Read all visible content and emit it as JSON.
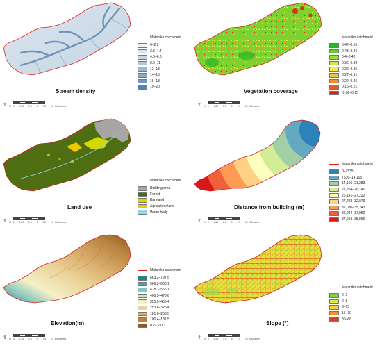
{
  "catchment_label": "Mataniko catchment",
  "scale": {
    "north": "N",
    "labels": [
      "0",
      "1.25",
      "2.5",
      "5",
      "7.5",
      "10"
    ],
    "unit": "Kilometers"
  },
  "panels": [
    {
      "id": "stream",
      "title": "Stream density",
      "legend": [
        {
          "label": "0–2.2",
          "color": "#eef3f7"
        },
        {
          "label": "2.3–4.4",
          "color": "#d9e4ee"
        },
        {
          "label": "4.5–6.6",
          "color": "#c6d6e4"
        },
        {
          "label": "8.9–11",
          "color": "#b1c7da"
        },
        {
          "label": "12–13",
          "color": "#9db8d0"
        },
        {
          "label": "14–15",
          "color": "#88a8c5"
        },
        {
          "label": "16–18",
          "color": "#7398bb"
        },
        {
          "label": "19–20",
          "color": "#5883ad"
        }
      ]
    },
    {
      "id": "vegetation",
      "title": "Vegetation coverage",
      "legend": [
        {
          "label": "0.47–0.55",
          "color": "#1fbf1f"
        },
        {
          "label": "0.43–0.46",
          "color": "#5fd12a"
        },
        {
          "label": "0.4–0.42",
          "color": "#9ae03a"
        },
        {
          "label": "0.36–0.39",
          "color": "#cfe84a"
        },
        {
          "label": "0.32–0.35",
          "color": "#f2ea52"
        },
        {
          "label": "0.27–0.31",
          "color": "#f6c23a"
        },
        {
          "label": "0.22–0.26",
          "color": "#f3902c"
        },
        {
          "label": "0.16–0.21",
          "color": "#ea5a22"
        },
        {
          "label": "-0.02–0.15",
          "color": "#dd1b1b"
        }
      ]
    },
    {
      "id": "landuse",
      "title": "Land use",
      "legend": [
        {
          "label": "Building area",
          "color": "#a6a6a6"
        },
        {
          "label": "Forest",
          "color": "#4f6e12"
        },
        {
          "label": "Bareland",
          "color": "#d3d900"
        },
        {
          "label": "Agriculture land",
          "color": "#f0c800"
        },
        {
          "label": "Water body",
          "color": "#8fd6f5"
        }
      ]
    },
    {
      "id": "distance",
      "title": "Distance from building (m)",
      "legend": [
        {
          "label": "0–7535",
          "color": "#2b83ba"
        },
        {
          "label": "7536–14,105",
          "color": "#64a8c1"
        },
        {
          "label": "14,106–21,283",
          "color": "#a1cfa6"
        },
        {
          "label": "21,284–26,140",
          "color": "#d3ec98"
        },
        {
          "label": "26,141–27,222",
          "color": "#fefebe"
        },
        {
          "label": "27,223–32,079",
          "color": "#fed185"
        },
        {
          "label": "32,080–35,243",
          "color": "#fd9b55"
        },
        {
          "label": "35,244–37,952",
          "color": "#f0603a"
        },
        {
          "label": "37,953–38,866",
          "color": "#d7191c"
        }
      ]
    },
    {
      "id": "elevation",
      "title": "Elevation(m)",
      "legend": [
        {
          "label": "663.2–797.5",
          "color": "#2b7f86"
        },
        {
          "label": "566.2–663.1",
          "color": "#53a3a3"
        },
        {
          "label": "478.7–566.1",
          "color": "#88c6bd"
        },
        {
          "label": "400.5–478.6",
          "color": "#c2e3d2"
        },
        {
          "label": "325.5–400.4",
          "color": "#f3f0c8"
        },
        {
          "label": "253.6–325.4",
          "color": "#ecd49a"
        },
        {
          "label": "181.6–253.5",
          "color": "#d9ad6b"
        },
        {
          "label": "100.4–181.5",
          "color": "#b9843f"
        },
        {
          "label": "0.2–100.3",
          "color": "#8c5a22"
        }
      ]
    },
    {
      "id": "slope",
      "title": "Slope (°)",
      "legend": [
        {
          "label": "0–2",
          "color": "#7fd14a"
        },
        {
          "label": "2–8",
          "color": "#d6e84a"
        },
        {
          "label": "8–15",
          "color": "#f6d23a"
        },
        {
          "label": "15–30",
          "color": "#f1922e"
        },
        {
          "label": "30–66",
          "color": "#d9421e"
        }
      ]
    }
  ]
}
